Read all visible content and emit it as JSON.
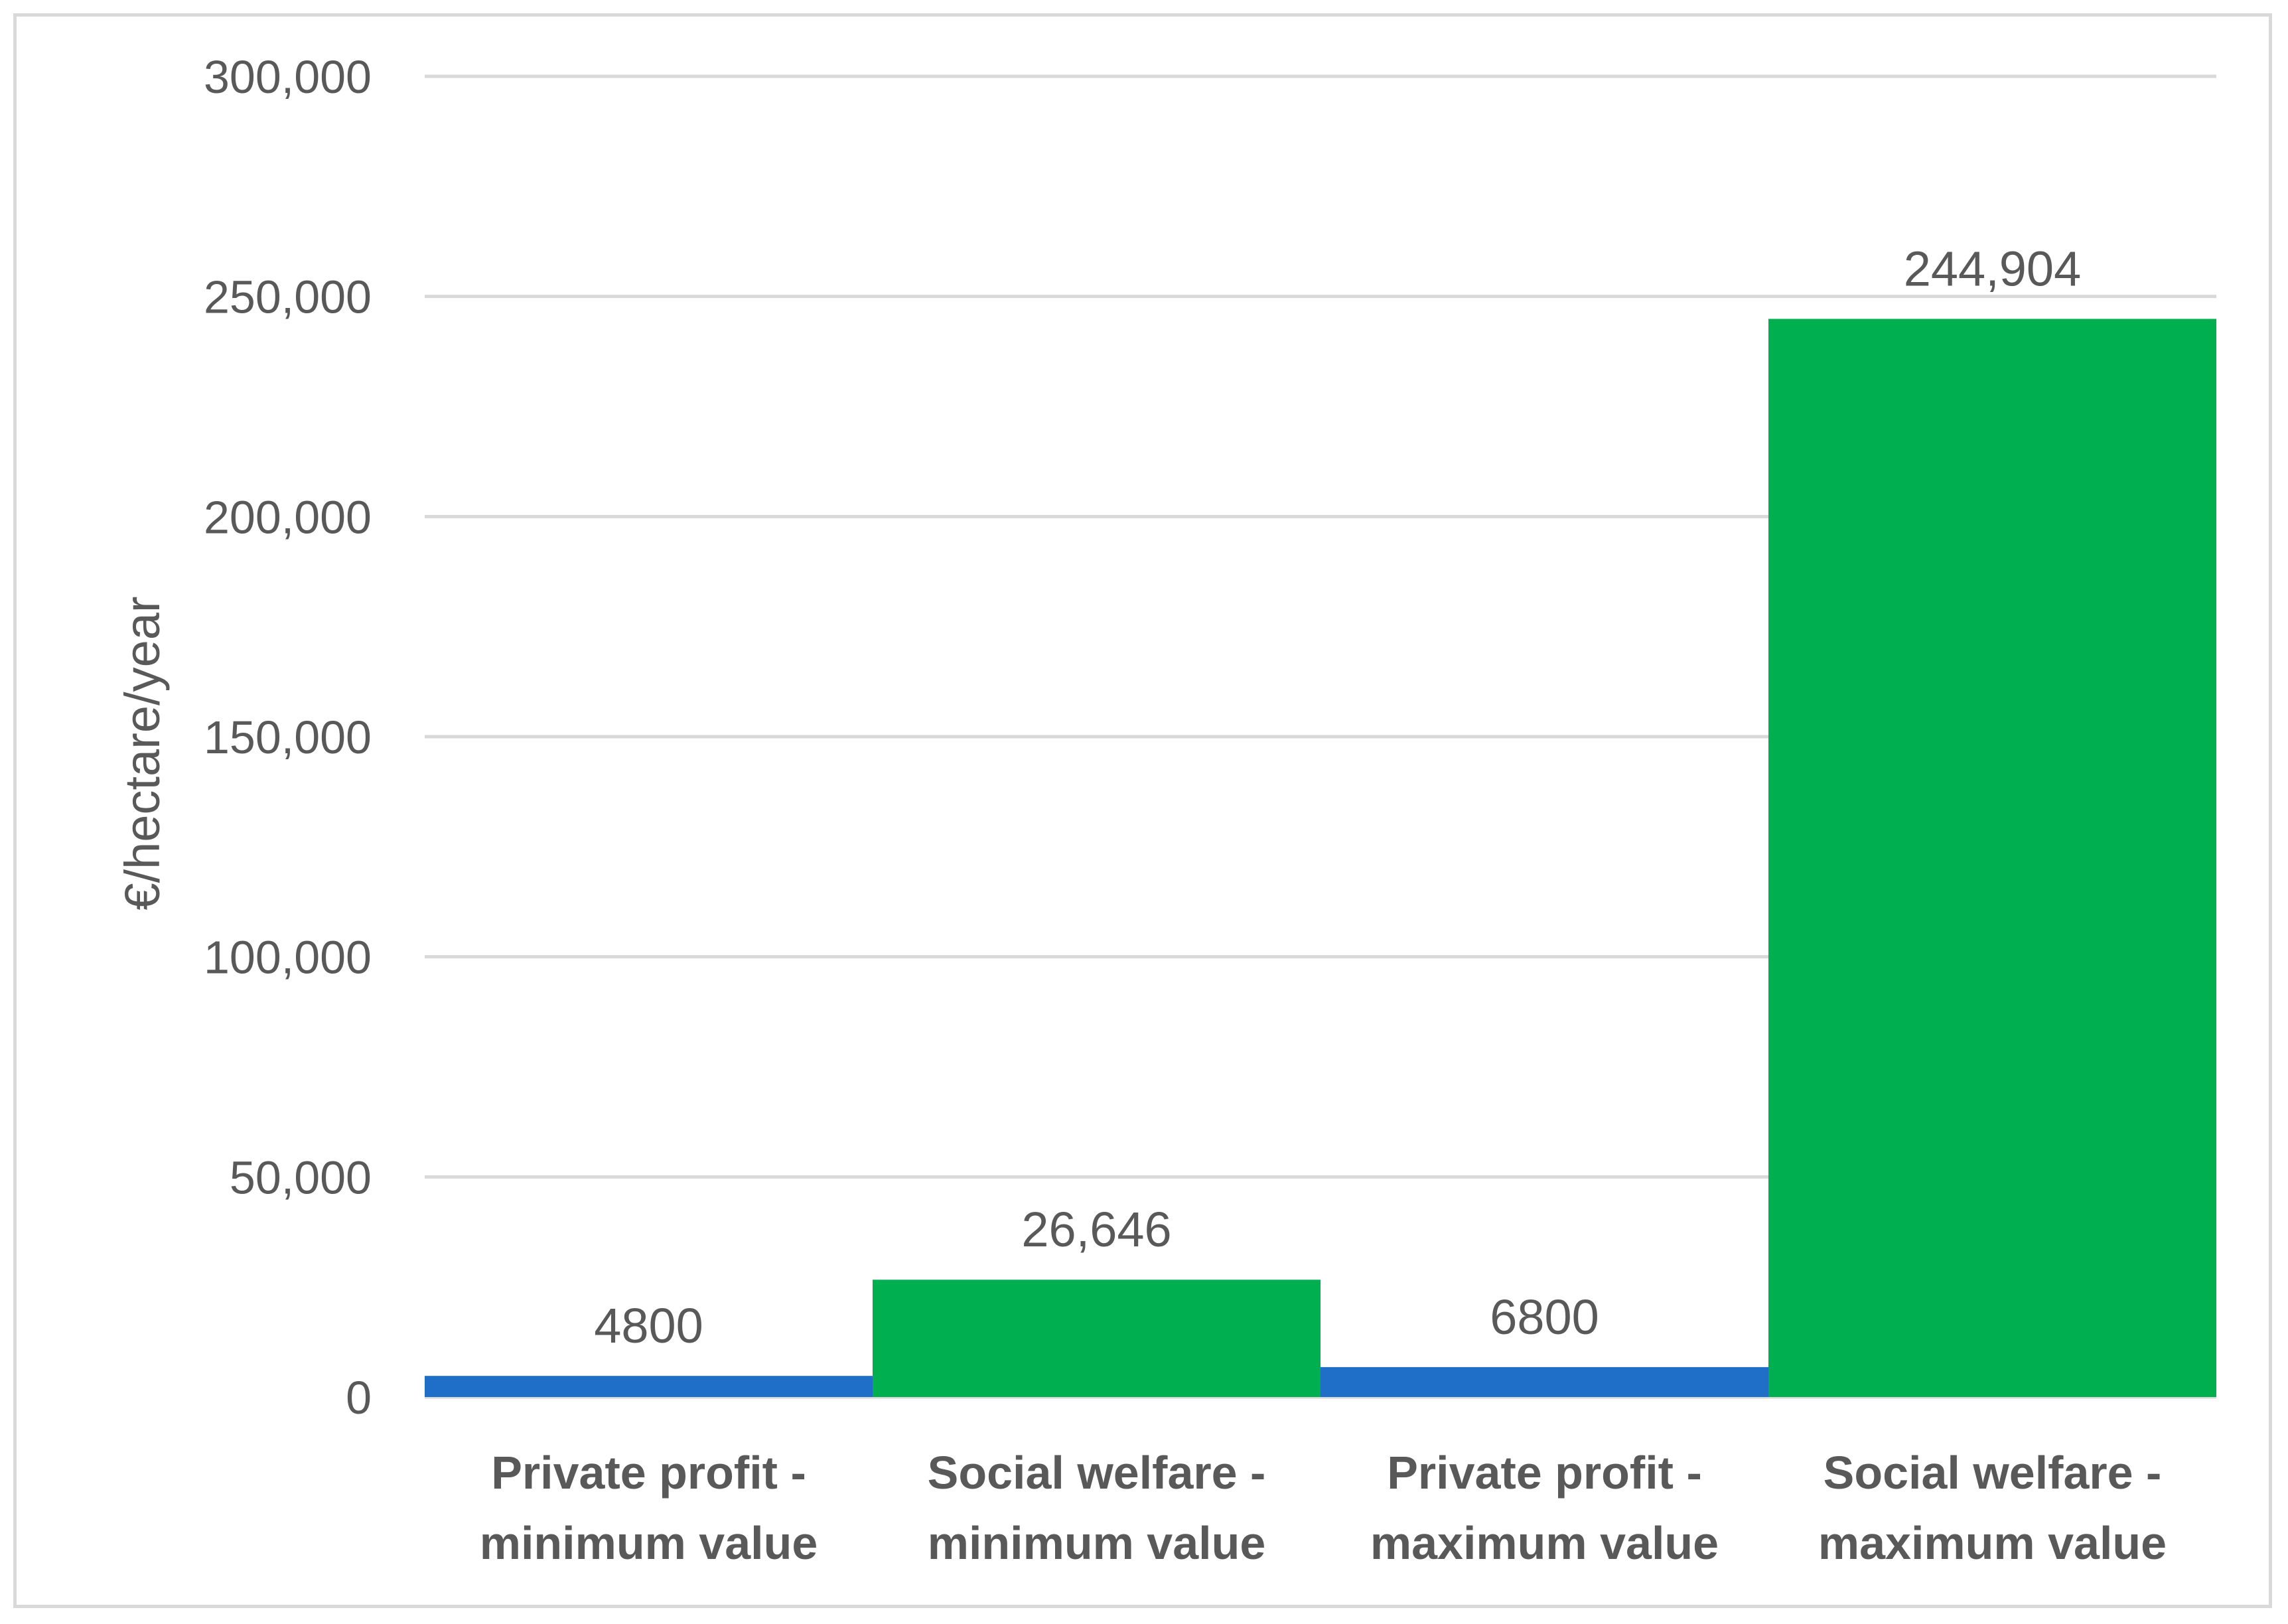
{
  "chart_data": {
    "type": "bar",
    "title": "",
    "xlabel": "",
    "ylabel": "€/hectare/year",
    "ylim": [
      0,
      300000
    ],
    "yticks": [
      0,
      50000,
      100000,
      150000,
      200000,
      250000,
      300000
    ],
    "ytick_labels": [
      "0",
      "50,000",
      "100,000",
      "150,000",
      "200,000",
      "250,000",
      "300,000"
    ],
    "grid": true,
    "legend": "none",
    "categories": [
      [
        "Private profit -",
        "minimum value"
      ],
      [
        "Social welfare -",
        "minimum value"
      ],
      [
        "Private profit -",
        "maximum value"
      ],
      [
        "Social welfare -",
        "maximum value"
      ]
    ],
    "values": [
      4800,
      26646,
      6800,
      244904
    ],
    "data_labels": [
      "4800",
      "26,646",
      "6800",
      "244,904"
    ],
    "colors": [
      "#1f6fc9",
      "#00b050",
      "#1f6fc9",
      "#00b050"
    ]
  }
}
